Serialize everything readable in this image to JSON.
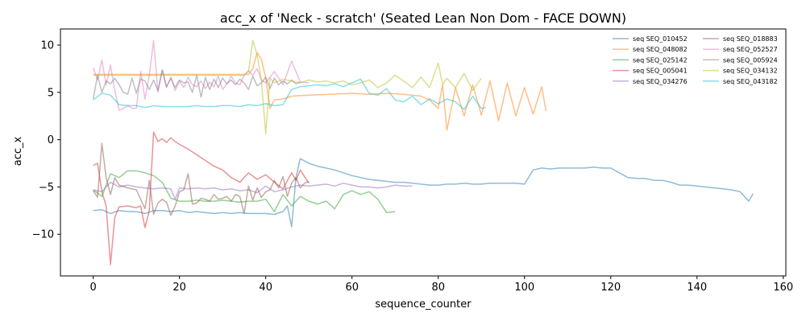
{
  "chart_data": {
    "type": "line",
    "title": "acc_x of 'Neck - scratch' (Seated Lean Non Dom - FACE DOWN)",
    "xlabel": "sequence_counter",
    "ylabel": "acc_x",
    "xlim": [
      -7.6,
      160.6
    ],
    "ylim": [
      -14.4,
      11.7
    ],
    "xticks": [
      0,
      20,
      40,
      60,
      80,
      100,
      120,
      140,
      160
    ],
    "yticks": [
      -10,
      -5,
      0,
      5,
      10
    ],
    "grid": false,
    "legend_position": "top-right",
    "legend_columns": 2,
    "series": [
      {
        "name": "seq SEQ_010452",
        "color": "#1f77b4",
        "x": [
          0,
          2,
          4,
          6,
          8,
          10,
          12,
          14,
          16,
          18,
          20,
          22,
          24,
          26,
          28,
          30,
          32,
          34,
          36,
          38,
          40,
          42,
          44,
          45,
          46,
          47,
          48,
          50,
          52,
          54,
          56,
          58,
          60,
          62,
          64,
          66,
          68,
          70,
          72,
          74,
          76,
          78,
          80,
          82,
          84,
          86,
          88,
          90,
          92,
          94,
          96,
          98,
          100,
          102,
          104,
          106,
          108,
          110,
          112,
          114,
          116,
          118,
          120,
          122,
          124,
          126,
          128,
          130,
          132,
          134,
          136,
          138,
          140,
          142,
          144,
          146,
          148,
          150,
          152,
          153
        ],
        "y": [
          -7.5,
          -7.4,
          -7.8,
          -7.5,
          -7.6,
          -7.6,
          -7.8,
          -7.5,
          -7.5,
          -7.6,
          -7.5,
          -7.7,
          -7.6,
          -7.7,
          -7.8,
          -7.7,
          -7.8,
          -7.7,
          -7.8,
          -7.8,
          -7.8,
          -7.9,
          -7.6,
          -7.0,
          -9.2,
          -4.0,
          -2.0,
          -2.5,
          -2.8,
          -3.0,
          -3.2,
          -3.5,
          -3.8,
          -4.0,
          -4.2,
          -4.3,
          -4.4,
          -4.5,
          -4.5,
          -4.6,
          -4.7,
          -4.8,
          -4.8,
          -4.7,
          -4.7,
          -4.6,
          -4.7,
          -4.7,
          -4.6,
          -4.6,
          -4.6,
          -4.6,
          -4.7,
          -3.2,
          -3.0,
          -3.1,
          -3.0,
          -3.0,
          -3.0,
          -3.0,
          -2.9,
          -3.0,
          -3.0,
          -3.5,
          -4.0,
          -4.1,
          -4.1,
          -4.3,
          -4.3,
          -4.5,
          -4.8,
          -4.8,
          -4.9,
          -5.0,
          -5.1,
          -5.2,
          -5.3,
          -5.5,
          -6.5,
          -5.7
        ]
      },
      {
        "name": "seq SEQ_048082",
        "color": "#ff7f0e",
        "x": [
          0,
          4,
          8,
          12,
          16,
          20,
          24,
          28,
          32,
          36,
          37,
          38,
          39,
          40,
          41,
          42,
          44,
          46,
          50,
          55,
          60,
          64,
          68,
          72,
          76,
          78,
          80,
          81,
          82,
          84,
          86,
          88,
          90,
          92,
          94,
          96,
          98,
          100,
          102,
          104,
          105
        ],
        "y": [
          6.9,
          6.9,
          6.9,
          6.9,
          6.9,
          6.9,
          6.9,
          6.9,
          6.9,
          6.9,
          7.5,
          9.2,
          8.5,
          6.5,
          3.3,
          4.2,
          4.3,
          4.6,
          4.7,
          4.8,
          4.9,
          4.8,
          4.9,
          4.8,
          4.6,
          4.2,
          3.3,
          5.8,
          1.0,
          5.5,
          2.5,
          5.8,
          2.6,
          6.2,
          2.0,
          6.0,
          2.5,
          5.5,
          2.7,
          5.6,
          3.0
        ]
      },
      {
        "name": "seq SEQ_025142",
        "color": "#2ca02c",
        "x": [
          0,
          2,
          4,
          6,
          8,
          10,
          12,
          14,
          16,
          18,
          20,
          22,
          24,
          26,
          28,
          30,
          32,
          34,
          36,
          38,
          40,
          42,
          44,
          46,
          48,
          50,
          52,
          54,
          56,
          58,
          60,
          62,
          64,
          66,
          68,
          70
        ],
        "y": [
          -5.3,
          -6.0,
          -3.6,
          -4.0,
          -3.3,
          -3.3,
          -3.5,
          -3.8,
          -4.5,
          -6.2,
          -6.5,
          -6.5,
          -6.4,
          -6.5,
          -6.5,
          -6.4,
          -6.5,
          -6.6,
          -6.5,
          -6.5,
          -6.3,
          -7.6,
          -5.8,
          -7.0,
          -6.0,
          -6.5,
          -6.8,
          -6.5,
          -7.3,
          -5.8,
          -5.4,
          -5.8,
          -5.5,
          -6.3,
          -7.7,
          -7.6
        ]
      },
      {
        "name": "seq SEQ_005041",
        "color": "#d62728",
        "x": [
          0,
          1,
          2,
          3,
          4,
          5,
          6,
          8,
          10,
          11,
          12,
          13,
          14,
          15,
          16,
          17,
          18,
          19,
          20,
          22,
          24,
          26,
          28,
          30,
          32,
          34,
          36,
          38,
          40,
          42,
          44,
          46,
          47,
          48,
          50
        ],
        "y": [
          -2.7,
          -2.5,
          -5.5,
          -7.0,
          -13.2,
          -8.2,
          -7.1,
          -7.0,
          -7.2,
          -7.0,
          -9.3,
          -7.5,
          0.8,
          -0.2,
          0.1,
          -0.3,
          0.2,
          -0.2,
          -0.5,
          -1.0,
          -1.6,
          -2.2,
          -2.8,
          -3.2,
          -4.0,
          -4.5,
          -3.5,
          -4.2,
          -3.7,
          -4.5,
          -5.2,
          -3.5,
          -4.3,
          -3.2,
          -4.6
        ]
      },
      {
        "name": "seq SEQ_034276",
        "color": "#9467bd",
        "x": [
          0,
          2,
          4,
          6,
          8,
          10,
          12,
          14,
          16,
          18,
          19,
          20,
          22,
          24,
          26,
          28,
          30,
          32,
          34,
          36,
          38,
          40,
          42,
          44,
          46,
          48,
          50,
          52,
          54,
          56,
          58,
          60,
          62,
          64,
          66,
          68,
          70,
          72,
          74
        ],
        "y": [
          -5.3,
          -5.5,
          -4.5,
          -5.0,
          -4.8,
          -5.0,
          -5.1,
          -5.2,
          -5.1,
          -5.2,
          -6.3,
          -5.1,
          -5.2,
          -5.1,
          -5.2,
          -5.1,
          -5.3,
          -5.2,
          -5.4,
          -5.3,
          -5.6,
          -4.9,
          -5.5,
          -5.3,
          -5.0,
          -4.8,
          -4.9,
          -4.8,
          -4.7,
          -4.9,
          -4.6,
          -4.8,
          -5.0,
          -5.0,
          -5.1,
          -5.0,
          -4.8,
          -4.9,
          -4.9
        ]
      },
      {
        "name": "seq SEQ_018883",
        "color": "#8c564b",
        "x": [
          0,
          1,
          2,
          3,
          4,
          5,
          6,
          8,
          10,
          12,
          13,
          14,
          15,
          16,
          17,
          18,
          19,
          20,
          21,
          22,
          23,
          24,
          25,
          26,
          27,
          28,
          29,
          30,
          31,
          32,
          33,
          34,
          35,
          36,
          37,
          38,
          39,
          40,
          41,
          42,
          43,
          44,
          45,
          46,
          47,
          48,
          49,
          50
        ],
        "y": [
          -5.4,
          -6.1,
          -0.4,
          -4.0,
          -5.8,
          -4.0,
          -4.8,
          -5.1,
          -5.3,
          -7.3,
          -4.3,
          -7.9,
          -6.7,
          -6.3,
          -6.6,
          -8.0,
          -7.0,
          -5.5,
          -5.3,
          -3.6,
          -6.8,
          -6.7,
          -6.2,
          -6.3,
          -6.5,
          -5.8,
          -6.3,
          -6.2,
          -6.0,
          -6.5,
          -5.8,
          -6.0,
          -7.8,
          -4.9,
          -6.4,
          -5.1,
          -6.1,
          -5.5,
          -5.3,
          -4.3,
          -5.1,
          -3.9,
          -6.0,
          -4.6,
          -4.0,
          -5.1,
          -4.6,
          -4.4
        ]
      },
      {
        "name": "seq SEQ_052527",
        "color": "#e377c2",
        "x": [
          0,
          1,
          2,
          3,
          4,
          5,
          6,
          7,
          8,
          9,
          10,
          11,
          12,
          13,
          14,
          15,
          16,
          17,
          18,
          19,
          20,
          21,
          22,
          23,
          24,
          25,
          26,
          27,
          28,
          29,
          30,
          31,
          32,
          33,
          34,
          35,
          36,
          37,
          38,
          39,
          40,
          42,
          44,
          46,
          48,
          50
        ],
        "y": [
          7.6,
          6.3,
          8.4,
          5.8,
          7.9,
          5.2,
          3.1,
          3.3,
          3.6,
          3.3,
          3.3,
          7.2,
          4.3,
          6.8,
          10.5,
          5.0,
          7.3,
          5.5,
          6.6,
          5.2,
          6.2,
          5.5,
          6.6,
          5.8,
          5.6,
          6.2,
          5.4,
          6.1,
          5.6,
          6.7,
          5.3,
          5.9,
          6.7,
          6.0,
          5.8,
          6.8,
          7.3,
          6.8,
          7.5,
          6.3,
          6.0,
          7.2,
          5.8,
          8.3,
          6.1,
          6.0
        ]
      },
      {
        "name": "seq SEQ_005924",
        "color": "#7f7f7f",
        "x": [
          0,
          1,
          2,
          3,
          4,
          5,
          6,
          7,
          8,
          9,
          10,
          11,
          12,
          13,
          14,
          15,
          16,
          17,
          18,
          19,
          20,
          21,
          22,
          23,
          24,
          25,
          26,
          27,
          28,
          29,
          30,
          31,
          32,
          33,
          34,
          35,
          36,
          37,
          38,
          39,
          40,
          41,
          42,
          43,
          44,
          45,
          46,
          47,
          48
        ],
        "y": [
          4.3,
          6.8,
          5.0,
          6.2,
          5.9,
          6.5,
          5.8,
          5.0,
          4.8,
          6.5,
          4.9,
          6.4,
          6.2,
          5.3,
          6.3,
          5.2,
          7.4,
          5.6,
          6.5,
          5.5,
          6.3,
          6.0,
          6.1,
          5.0,
          6.8,
          4.5,
          6.6,
          5.3,
          6.4,
          5.5,
          6.5,
          5.9,
          6.3,
          5.8,
          6.4,
          6.0,
          5.3,
          6.7,
          5.7,
          6.0,
          6.6,
          5.4,
          6.5,
          5.8,
          6.2,
          5.9,
          6.3,
          5.9,
          6.1
        ]
      },
      {
        "name": "seq SEQ_034132",
        "color": "#bcbd22",
        "x": [
          0,
          5,
          10,
          15,
          20,
          25,
          30,
          35,
          36,
          37,
          38,
          39,
          40,
          41,
          42,
          44,
          46,
          48,
          50,
          52,
          54,
          56,
          58,
          60,
          62,
          64,
          66,
          68,
          70,
          72,
          74,
          76,
          78,
          80,
          81,
          82,
          84,
          86,
          88,
          90
        ],
        "y": [
          6.8,
          6.8,
          6.8,
          6.8,
          6.8,
          6.8,
          6.8,
          6.8,
          7.2,
          10.5,
          9.0,
          6.3,
          0.6,
          6.5,
          6.0,
          6.4,
          6.2,
          6.0,
          6.3,
          6.1,
          6.2,
          6.0,
          6.2,
          5.8,
          6.0,
          6.3,
          5.5,
          6.0,
          6.8,
          6.2,
          5.5,
          6.6,
          5.5,
          8.1,
          5.8,
          6.5,
          5.5,
          7.0,
          5.2,
          6.5
        ]
      },
      {
        "name": "seq SEQ_043182",
        "color": "#17becf",
        "x": [
          0,
          2,
          4,
          6,
          8,
          10,
          12,
          14,
          16,
          18,
          20,
          22,
          24,
          26,
          28,
          30,
          32,
          34,
          36,
          38,
          40,
          42,
          44,
          46,
          48,
          50,
          52,
          54,
          56,
          58,
          60,
          62,
          64,
          66,
          68,
          70,
          72,
          74,
          76,
          78,
          80,
          82,
          84,
          86,
          88,
          90,
          91
        ],
        "y": [
          4.2,
          4.9,
          4.7,
          3.7,
          3.6,
          3.6,
          3.4,
          3.6,
          3.5,
          3.5,
          3.5,
          3.5,
          3.6,
          3.5,
          3.5,
          3.6,
          3.6,
          3.5,
          3.7,
          3.6,
          3.8,
          3.6,
          3.7,
          5.3,
          5.6,
          5.7,
          5.8,
          5.7,
          5.9,
          5.6,
          6.0,
          6.4,
          4.9,
          4.7,
          5.4,
          4.2,
          4.0,
          4.6,
          3.7,
          4.3,
          3.8,
          4.3,
          4.0,
          3.2,
          4.6,
          3.3,
          3.4
        ]
      }
    ]
  }
}
